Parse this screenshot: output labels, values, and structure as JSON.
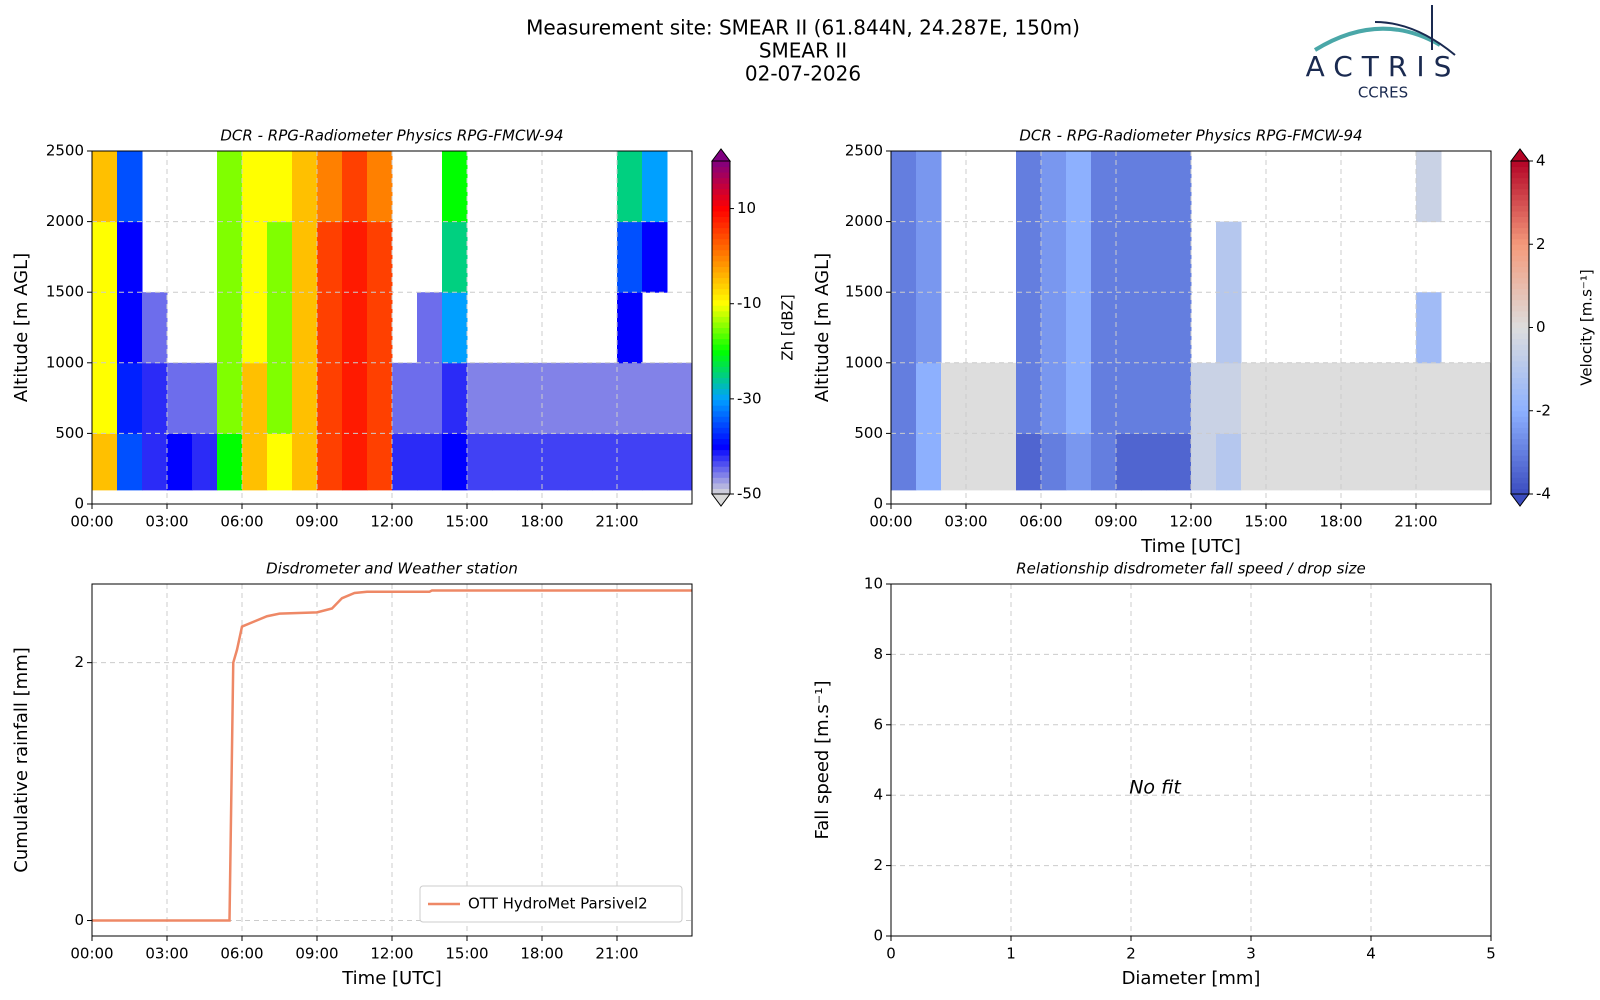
{
  "header": {
    "lines": [
      "Measurement site: SMEAR II (61.844N, 24.287E, 150m)",
      "SMEAR II",
      "02-07-2026"
    ]
  },
  "logo": {
    "name": "ACTRIS",
    "sub": "CCRES"
  },
  "chart_data": [
    {
      "type": "heatmap",
      "title": "DCR - RPG-Radiometer Physics RPG-FMCW-94",
      "ylabel": "Altitude [m AGL]",
      "colorbar_label": "Zh [dBZ]",
      "vlim": [
        -50,
        20
      ],
      "cticks": [
        -50,
        -30,
        -10,
        10
      ],
      "colormap": [
        "#d9d9d9",
        "#0000ff",
        "#00a0ff",
        "#00ff00",
        "#ffff00",
        "#ff8000",
        "#ff0000",
        "#800080"
      ],
      "xlim": [
        0,
        24
      ],
      "ylim": [
        0,
        2500
      ],
      "grid": true,
      "xticks": [
        {
          "value": 0,
          "label": "00:00"
        },
        {
          "value": 3,
          "label": "03:00"
        },
        {
          "value": 6,
          "label": "06:00"
        },
        {
          "value": 9,
          "label": "09:00"
        },
        {
          "value": 12,
          "label": "12:00"
        },
        {
          "value": 15,
          "label": "15:00"
        },
        {
          "value": 18,
          "label": "18:00"
        },
        {
          "value": 21,
          "label": "21:00"
        }
      ],
      "yticks": [
        0,
        500,
        1000,
        1500,
        2000,
        2500
      ],
      "x_bins": [
        0,
        1,
        2,
        3,
        4,
        5,
        6,
        7,
        8,
        9,
        10,
        11,
        12,
        13,
        14,
        15,
        16,
        17,
        18,
        19,
        20,
        21,
        22,
        23,
        24
      ],
      "y_bins": [
        100,
        500,
        1000,
        1500,
        2000,
        2500
      ],
      "z": [
        [
          -5,
          -10,
          -10,
          -10,
          -5
        ],
        [
          -35,
          -38,
          -40,
          -40,
          -35
        ],
        [
          -42,
          -42,
          -45,
          null,
          null
        ],
        [
          -40,
          -45,
          null,
          null,
          null
        ],
        [
          -42,
          -45,
          null,
          null,
          null
        ],
        [
          -20,
          -15,
          -15,
          -15,
          -15
        ],
        [
          -5,
          -5,
          -10,
          -10,
          -10
        ],
        [
          -10,
          -15,
          -15,
          -15,
          -10
        ],
        [
          -5,
          -5,
          -5,
          -5,
          -5
        ],
        [
          5,
          5,
          5,
          5,
          0
        ],
        [
          8,
          8,
          8,
          8,
          5
        ],
        [
          5,
          5,
          5,
          5,
          0
        ],
        [
          -42,
          -45,
          null,
          null,
          null
        ],
        [
          -42,
          -45,
          -45,
          null,
          null
        ],
        [
          -40,
          -42,
          -30,
          -25,
          -20
        ],
        [
          -43,
          -46,
          null,
          null,
          null
        ],
        [
          -43,
          -46,
          null,
          null,
          null
        ],
        [
          -43,
          -46,
          null,
          null,
          null
        ],
        [
          -43,
          -46,
          null,
          null,
          null
        ],
        [
          -43,
          -46,
          null,
          null,
          null
        ],
        [
          -43,
          -46,
          null,
          null,
          null
        ],
        [
          -43,
          -46,
          -40,
          -35,
          -25
        ],
        [
          -43,
          -46,
          null,
          -40,
          -30
        ],
        [
          -43,
          -46,
          null,
          null,
          null
        ]
      ]
    },
    {
      "type": "heatmap",
      "title": "DCR - RPG-Radiometer Physics RPG-FMCW-94",
      "ylabel": "Altitude [m AGL]",
      "xlabel": "Time [UTC]",
      "colorbar_label": "Velocity [m.s⁻¹]",
      "vlim": [
        -4,
        4
      ],
      "cticks": [
        -4,
        -2,
        0,
        2,
        4
      ],
      "colormap": [
        "#3b4cc0",
        "#8db0fe",
        "#dddddd",
        "#f49a7b",
        "#b40426"
      ],
      "xlim": [
        0,
        24
      ],
      "ylim": [
        0,
        2500
      ],
      "grid": true,
      "xticks": [
        {
          "value": 0,
          "label": "00:00"
        },
        {
          "value": 3,
          "label": "03:00"
        },
        {
          "value": 6,
          "label": "06:00"
        },
        {
          "value": 9,
          "label": "09:00"
        },
        {
          "value": 12,
          "label": "12:00"
        },
        {
          "value": 15,
          "label": "15:00"
        },
        {
          "value": 18,
          "label": "18:00"
        },
        {
          "value": 21,
          "label": "21:00"
        }
      ],
      "yticks": [
        0,
        500,
        1000,
        1500,
        2000,
        2500
      ],
      "x_bins": [
        0,
        1,
        2,
        3,
        4,
        5,
        6,
        7,
        8,
        9,
        10,
        11,
        12,
        13,
        14,
        15,
        16,
        17,
        18,
        19,
        20,
        21,
        22,
        23,
        24
      ],
      "y_bins": [
        100,
        500,
        1000,
        1500,
        2000,
        2500
      ],
      "z": [
        [
          -3,
          -3,
          -3,
          -3,
          -3
        ],
        [
          -2,
          -2,
          -2.5,
          -2.5,
          -2.5
        ],
        [
          0,
          0,
          null,
          null,
          null
        ],
        [
          0,
          0,
          null,
          null,
          null
        ],
        [
          0,
          0,
          null,
          null,
          null
        ],
        [
          -3.5,
          -3,
          -3,
          -3,
          -3
        ],
        [
          -3,
          -2.5,
          -2.5,
          -2.5,
          -2.5
        ],
        [
          -2.5,
          -2,
          -2,
          -2,
          -2
        ],
        [
          -3,
          -3,
          -3,
          -3,
          -3
        ],
        [
          -3.5,
          -3,
          -3,
          -3,
          -3
        ],
        [
          -3.5,
          -3,
          -3,
          -3,
          -3
        ],
        [
          -3.5,
          -3,
          -3,
          -3,
          -3
        ],
        [
          -0.5,
          -0.5,
          null,
          null,
          null
        ],
        [
          -1,
          -0.5,
          -1,
          -1,
          null
        ],
        [
          0,
          0,
          null,
          null,
          null
        ],
        [
          0,
          0,
          null,
          null,
          null
        ],
        [
          0,
          0,
          null,
          null,
          null
        ],
        [
          0,
          0,
          null,
          null,
          null
        ],
        [
          0,
          0,
          null,
          null,
          null
        ],
        [
          0,
          0,
          null,
          null,
          null
        ],
        [
          0,
          0,
          null,
          null,
          null
        ],
        [
          0,
          0,
          -1.5,
          null,
          -0.5
        ],
        [
          0,
          0,
          null,
          null,
          null
        ],
        [
          0,
          0,
          null,
          null,
          null
        ]
      ]
    },
    {
      "type": "line",
      "title": "Disdrometer and Weather station",
      "ylabel": "Cumulative rainfall [mm]",
      "xlabel": "Time [UTC]",
      "xlim": [
        0,
        24
      ],
      "ylim": [
        -0.12,
        2.61
      ],
      "grid": true,
      "legend": "lower right",
      "xticks": [
        {
          "value": 0,
          "label": "00:00"
        },
        {
          "value": 3,
          "label": "03:00"
        },
        {
          "value": 6,
          "label": "06:00"
        },
        {
          "value": 9,
          "label": "09:00"
        },
        {
          "value": 12,
          "label": "12:00"
        },
        {
          "value": 15,
          "label": "15:00"
        },
        {
          "value": 18,
          "label": "18:00"
        },
        {
          "value": 21,
          "label": "21:00"
        }
      ],
      "yticks": [
        0,
        2
      ],
      "x": [
        0,
        5.5,
        5.65,
        5.8,
        6.0,
        6.5,
        7,
        7.5,
        9,
        9.6,
        10,
        10.5,
        11,
        13.5,
        13.6,
        24
      ],
      "series": [
        {
          "name": "OTT HydroMet Parsivel2",
          "color": "#ee8866",
          "values": [
            0,
            0,
            2.0,
            2.1,
            2.28,
            2.32,
            2.36,
            2.38,
            2.39,
            2.42,
            2.5,
            2.54,
            2.55,
            2.55,
            2.56,
            2.56
          ]
        }
      ]
    },
    {
      "type": "scatter",
      "title": "Relationship disdrometer fall speed / drop size",
      "ylabel": "Fall speed [m.s⁻¹]",
      "xlabel": "Diameter [mm]",
      "annotation": "No fit",
      "xlim": [
        0,
        5
      ],
      "ylim": [
        0,
        10
      ],
      "grid": true,
      "xticks": [
        0,
        1,
        2,
        3,
        4,
        5
      ],
      "yticks": [
        0,
        2,
        4,
        6,
        8,
        10
      ]
    }
  ]
}
